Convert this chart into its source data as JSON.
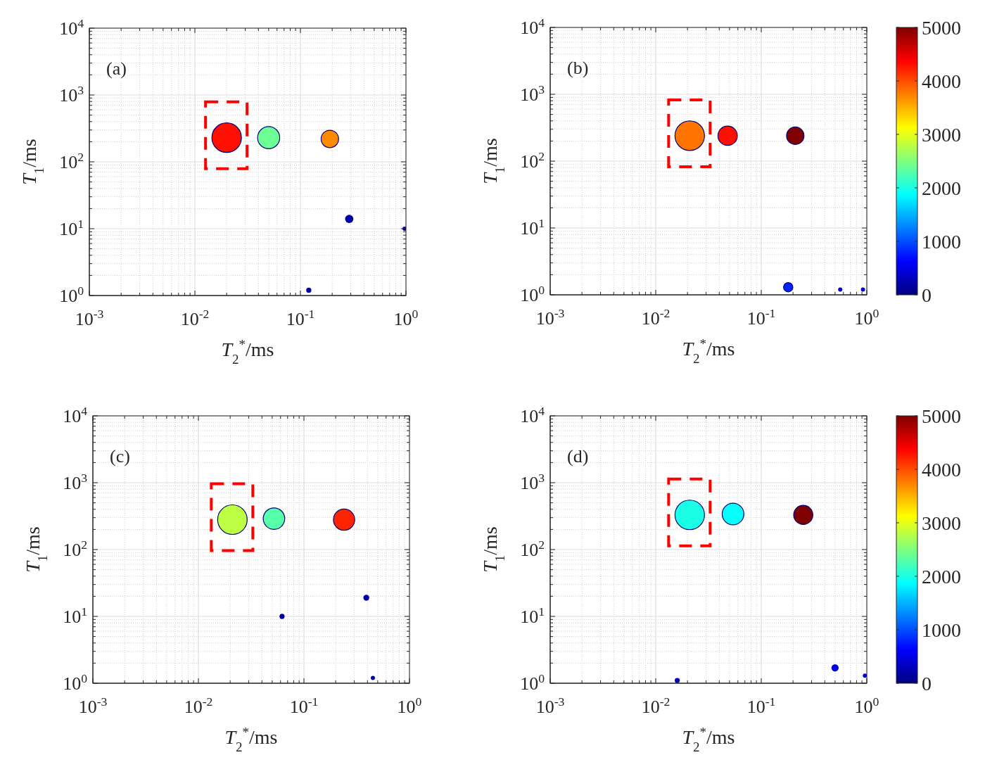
{
  "chart_data": [
    {
      "type": "bubble",
      "x": [
        0.02,
        0.05,
        0.19,
        0.29,
        0.12,
        0.97
      ],
      "values": [
        230,
        230,
        220,
        14,
        1.2,
        10
      ],
      "sizes": [
        1,
        0.56,
        0.35,
        0.08,
        0.03,
        0.02
      ],
      "colors": [
        "#ff0f00",
        "#6bff94",
        "#ff8a00",
        "#0000a8",
        "#0000a8",
        "#0000a8"
      ],
      "xlim": [
        0.001,
        1
      ],
      "ylim": [
        1,
        10000
      ],
      "xticks": [
        {
          "value": 0.001,
          "label": "10$^{-3}$"
        },
        {
          "value": 0.01,
          "label": "10$^{-2}$"
        },
        {
          "value": 0.1,
          "label": "10$^{-1}$"
        },
        {
          "value": 1,
          "label": "10$^{0}$"
        }
      ],
      "yticks": [
        {
          "value": 1,
          "label": "10$^{0}$"
        },
        {
          "value": 10,
          "label": "10$^{1}$"
        },
        {
          "value": 100,
          "label": "10$^{2}$"
        },
        {
          "value": 1000,
          "label": "10$^{3}$"
        },
        {
          "value": 10000,
          "label": "10$^{4}$"
        }
      ],
      "log": "xy",
      "grid": true,
      "xlabel": "T$_{2}$$^{*}$/ms",
      "ylabel": "T$_{1}$/ms",
      "annotations": [
        "(a)"
      ]
    },
    {
      "type": "bubble",
      "x": [
        0.021,
        0.048,
        0.21,
        0.18,
        0.56,
        0.92
      ],
      "values": [
        240,
        240,
        240,
        1.3,
        1.2,
        1.2
      ],
      "sizes": [
        1,
        0.43,
        0.35,
        0.1,
        0.02,
        0.02
      ],
      "cvalues": [
        3800,
        4300,
        5000,
        800,
        400,
        400
      ],
      "clim": [
        0,
        5000
      ],
      "cticks": [
        0,
        1000,
        2000,
        3000,
        4000,
        5000
      ],
      "xlim": [
        0.001,
        1
      ],
      "ylim": [
        1,
        10000
      ],
      "xticks": [
        {
          "value": 0.001,
          "label": "10$^{-3}$"
        },
        {
          "value": 0.01,
          "label": "10$^{-2}$"
        },
        {
          "value": 0.1,
          "label": "10$^{-1}$"
        },
        {
          "value": 1,
          "label": "10$^{0}$"
        }
      ],
      "yticks": [
        {
          "value": 1,
          "label": "10$^{0}$"
        },
        {
          "value": 10,
          "label": "10$^{1}$"
        },
        {
          "value": 100,
          "label": "10$^{2}$"
        },
        {
          "value": 1000,
          "label": "10$^{3}$"
        },
        {
          "value": 10000,
          "label": "10$^{4}$"
        }
      ],
      "log": "xy",
      "grid": true,
      "xlabel": "T$_{2}$$^{*}$/ms",
      "ylabel": "T$_{1}$/ms",
      "annotations": [
        "(b)"
      ]
    },
    {
      "type": "bubble",
      "x": [
        0.021,
        0.052,
        0.24,
        0.062,
        0.39,
        0.45
      ],
      "values": [
        280,
        290,
        280,
        10,
        19,
        1.2
      ],
      "sizes": [
        1,
        0.53,
        0.52,
        0.03,
        0.04,
        0.02
      ],
      "colors": [
        "#bdff42",
        "#57ffa8",
        "#ff2400",
        "#0000a8",
        "#0000a8",
        "#0000a8"
      ],
      "xlim": [
        0.001,
        1
      ],
      "ylim": [
        1,
        10000
      ],
      "xticks": [
        {
          "value": 0.001,
          "label": "10$^{-3}$"
        },
        {
          "value": 0.01,
          "label": "10$^{-2}$"
        },
        {
          "value": 0.1,
          "label": "10$^{-1}$"
        },
        {
          "value": 1,
          "label": "10$^{0}$"
        }
      ],
      "yticks": [
        {
          "value": 1,
          "label": "10$^{0}$"
        },
        {
          "value": 10,
          "label": "10$^{1}$"
        },
        {
          "value": 100,
          "label": "10$^{2}$"
        },
        {
          "value": 1000,
          "label": "10$^{3}$"
        },
        {
          "value": 10000,
          "label": "10$^{4}$"
        }
      ],
      "log": "xy",
      "grid": true,
      "xlabel": "T$_{2}$$^{*}$/ms",
      "ylabel": "T$_{1}$/ms",
      "annotations": [
        "(c)"
      ]
    },
    {
      "type": "bubble",
      "x": [
        0.021,
        0.054,
        0.25,
        0.016,
        0.5,
        0.96
      ],
      "values": [
        330,
        340,
        330,
        1.1,
        1.7,
        1.3
      ],
      "sizes": [
        1,
        0.54,
        0.42,
        0.03,
        0.06,
        0.02
      ],
      "cvalues": [
        2000,
        1900,
        5000,
        300,
        500,
        400
      ],
      "clim": [
        0,
        5000
      ],
      "cticks": [
        0,
        1000,
        2000,
        3000,
        4000,
        5000
      ],
      "xlim": [
        0.001,
        1
      ],
      "ylim": [
        1,
        10000
      ],
      "xticks": [
        {
          "value": 0.001,
          "label": "10$^{-3}$"
        },
        {
          "value": 0.01,
          "label": "10$^{-2}$"
        },
        {
          "value": 0.1,
          "label": "10$^{-1}$"
        },
        {
          "value": 1,
          "label": "10$^{0}$"
        }
      ],
      "yticks": [
        {
          "value": 1,
          "label": "10$^{0}$"
        },
        {
          "value": 10,
          "label": "10$^{1}$"
        },
        {
          "value": 100,
          "label": "10$^{2}$"
        },
        {
          "value": 1000,
          "label": "10$^{3}$"
        },
        {
          "value": 10000,
          "label": "10$^{4}$"
        }
      ],
      "log": "xy",
      "grid": true,
      "xlabel": "T$_{2}$$^{*}$/ms",
      "ylabel": "T$_{1}$/ms",
      "annotations": [
        "(d)"
      ]
    }
  ]
}
